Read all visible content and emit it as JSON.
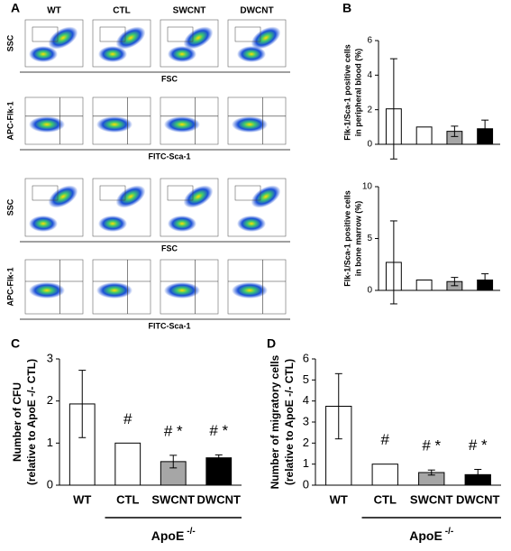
{
  "panel_labels": [
    "A",
    "B",
    "C",
    "D"
  ],
  "flow_cytometry": {
    "columns": [
      "WT",
      "CTL",
      "SWCNT",
      "DWCNT"
    ],
    "rows": [
      {
        "y_label": "SSC",
        "x_label": "FSC"
      },
      {
        "y_label": "APC-Flk-1",
        "x_label": "FITC-Sca-1"
      },
      {
        "y_label": "SSC",
        "x_label": "FSC"
      },
      {
        "y_label": "APC-Flk-1",
        "x_label": "FITC-Sca-1"
      }
    ]
  },
  "chart_data": [
    {
      "type": "bar",
      "ylabel": [
        "Flk-1/Sca-1 positive cells",
        "in peripheral blood (%)"
      ],
      "categories": [
        null,
        null,
        null,
        null
      ],
      "values": [
        2.05,
        1.0,
        0.75,
        0.9
      ],
      "errors": [
        2.9,
        0,
        0.3,
        0.5
      ],
      "colors": [
        "#ffffff",
        "#ffffff",
        "#a6a6a6",
        "#000000"
      ],
      "ylim": [
        0,
        6
      ],
      "yticks": [
        0,
        2,
        4,
        6
      ]
    },
    {
      "type": "bar",
      "ylabel": [
        "Flk-1/Sca-1 positive cells",
        "in bone marrow (%)"
      ],
      "categories": [
        null,
        null,
        null,
        null
      ],
      "values": [
        2.7,
        1.0,
        0.85,
        1.0
      ],
      "errors": [
        4.0,
        0,
        0.4,
        0.6
      ],
      "colors": [
        "#ffffff",
        "#ffffff",
        "#a6a6a6",
        "#000000"
      ],
      "ylim": [
        0,
        10
      ],
      "yticks": [
        0,
        5,
        10
      ]
    },
    {
      "type": "bar",
      "ylabel": [
        "Number of CFU",
        "(relative to ApoE -/- CTL)"
      ],
      "categories": [
        "WT",
        "CTL",
        "SWCNT",
        "DWCNT"
      ],
      "values": [
        1.93,
        1.0,
        0.56,
        0.65
      ],
      "errors": [
        0.8,
        0,
        0.15,
        0.07
      ],
      "colors": [
        "#ffffff",
        "#ffffff",
        "#a6a6a6",
        "#000000"
      ],
      "ylim": [
        0,
        3
      ],
      "yticks": [
        0,
        1,
        2,
        3
      ],
      "annotations": [
        null,
        "#",
        "# *",
        "# *"
      ],
      "group_label": {
        "text": "ApoE",
        "superscript": "-/-"
      }
    },
    {
      "type": "bar",
      "ylabel": [
        "Number of  migratory cells",
        "(relative to ApoE -/- CTL)"
      ],
      "categories": [
        "WT",
        "CTL",
        "SWCNT",
        "DWCNT"
      ],
      "values": [
        3.75,
        1.0,
        0.6,
        0.5
      ],
      "errors": [
        1.55,
        0,
        0.12,
        0.25
      ],
      "colors": [
        "#ffffff",
        "#ffffff",
        "#a6a6a6",
        "#000000"
      ],
      "ylim": [
        0,
        6
      ],
      "yticks": [
        0,
        1,
        2,
        3,
        4,
        5,
        6
      ],
      "annotations": [
        null,
        "#",
        "# *",
        "# *"
      ],
      "group_label": {
        "text": "ApoE",
        "superscript": "-/-"
      }
    }
  ]
}
